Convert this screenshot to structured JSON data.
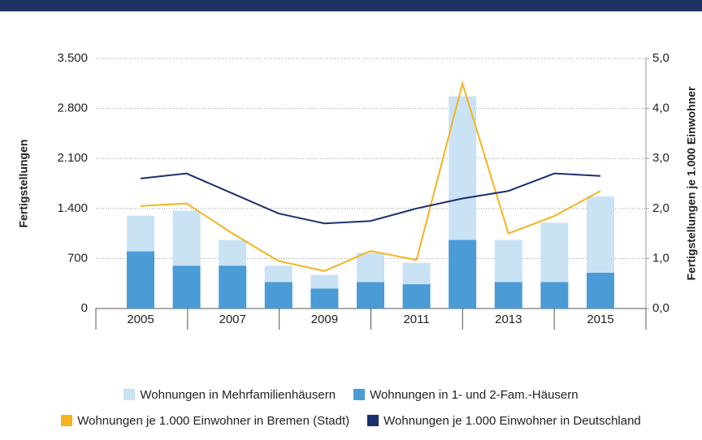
{
  "chart_data": {
    "type": "bar",
    "ylabel": "Fertigstellungen",
    "y2label": "Fertigstellungen je 1.000 Einwohner",
    "categories": [
      "2005",
      null,
      "2007",
      null,
      "2009",
      null,
      "2011",
      null,
      "2013",
      null,
      "2015"
    ],
    "series": [
      {
        "name": "Wohnungen in Mehrfamilienhäusern",
        "color": "#c9e3f5",
        "values": [
          500,
          770,
          360,
          230,
          190,
          410,
          300,
          2010,
          590,
          830,
          1070
        ]
      },
      {
        "name": "Wohnungen in 1- und 2-Fam.-Häusern",
        "color": "#4a9bd6",
        "values": [
          800,
          600,
          600,
          370,
          280,
          370,
          340,
          960,
          370,
          370,
          500
        ]
      },
      {
        "name": "Wohnungen je 1.000 Einwohner in Bremen (Stadt)",
        "color": "#f5b41c",
        "type": "line",
        "axis": "y2",
        "values": [
          2.05,
          2.1,
          1.5,
          0.95,
          0.75,
          1.15,
          0.97,
          4.5,
          1.5,
          1.85,
          2.35
        ]
      },
      {
        "name": "Wohnungen je 1.000 Einwohner in Deutschland",
        "color": "#1b2f6e",
        "type": "line",
        "axis": "y2",
        "values": [
          2.6,
          2.7,
          2.3,
          1.9,
          1.7,
          1.75,
          2.0,
          2.2,
          2.35,
          2.7,
          2.65
        ]
      }
    ],
    "ylim": [
      0,
      3500
    ],
    "yticks": [
      0,
      700,
      {
        "value": 1400,
        "label": "1.400"
      },
      {
        "value": 2100,
        "label": "2.100"
      },
      {
        "value": 2800,
        "label": "2.800"
      },
      {
        "value": 3500,
        "label": "3.500"
      }
    ],
    "y2lim": [
      0,
      5
    ],
    "y2ticks": [
      {
        "value": 0,
        "label": "0,0"
      },
      {
        "value": 1,
        "label": "1,0"
      },
      {
        "value": 2,
        "label": "2,0"
      },
      {
        "value": 3,
        "label": "3,0"
      },
      {
        "value": 4,
        "label": "4,0"
      },
      {
        "value": 5,
        "label": "5,0"
      }
    ],
    "grid": true,
    "stacked": true
  }
}
